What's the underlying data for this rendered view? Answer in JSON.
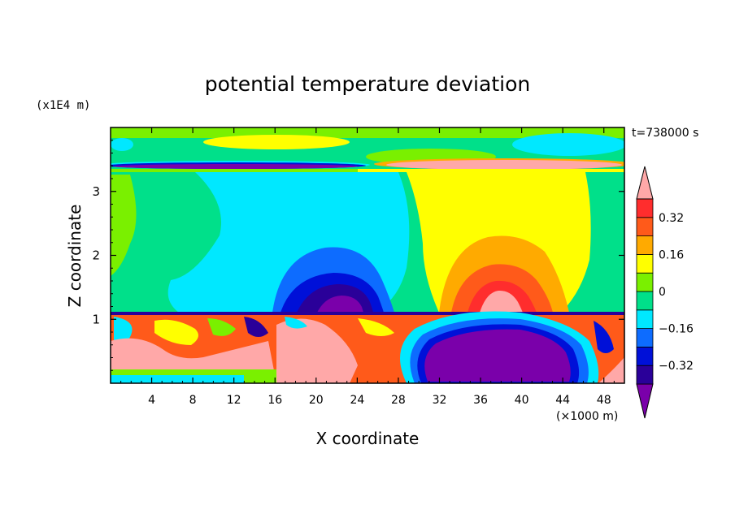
{
  "chart_data": {
    "type": "heatmap",
    "title": "potential temperature deviation",
    "xlabel": "X coordinate",
    "ylabel": "Z coordinate",
    "x_unit": "(×1000 m)",
    "y_unit": "(x1E4 m)",
    "time_label": "t=738000 s",
    "x_ticks": [
      "4",
      "8",
      "12",
      "16",
      "20",
      "24",
      "28",
      "32",
      "36",
      "40",
      "44",
      "48"
    ],
    "y_ticks": [
      "1",
      "2",
      "3"
    ],
    "xlim": [
      0,
      50
    ],
    "ylim": [
      0,
      4
    ],
    "colorbar": {
      "labels": [
        "0.32",
        "0.16",
        "0",
        "−0.16",
        "−0.32"
      ],
      "label_values": [
        0.32,
        0.16,
        0,
        -0.16,
        -0.32
      ],
      "levels": [
        -0.4,
        -0.32,
        -0.24,
        -0.16,
        -0.08,
        0,
        0.08,
        0.16,
        0.24,
        0.32,
        0.4
      ],
      "colors": [
        "#7a00aa",
        "#2a0099",
        "#0010d8",
        "#0d6cff",
        "#00e8ff",
        "#00e08a",
        "#7af000",
        "#ffff00",
        "#ffaa00",
        "#ff5a1a",
        "#ff2d2d",
        "#ffa8a8"
      ]
    }
  }
}
